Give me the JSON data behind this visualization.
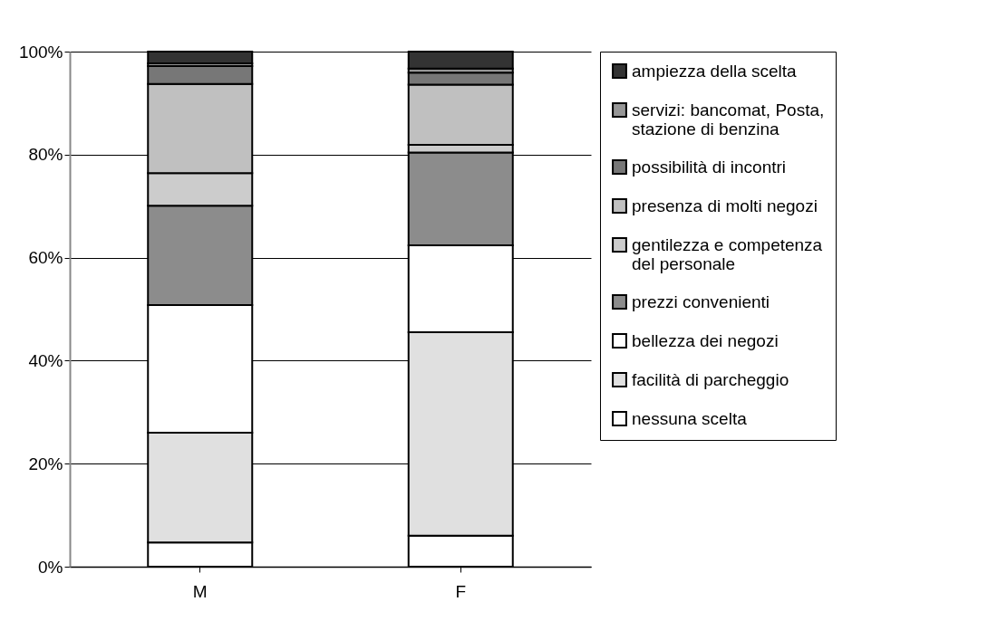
{
  "chart_data": {
    "type": "bar",
    "stacked": true,
    "categories": [
      "M",
      "F"
    ],
    "ylim": [
      0,
      100
    ],
    "yticks": [
      {
        "value": 0,
        "label": "0%"
      },
      {
        "value": 20,
        "label": "20%"
      },
      {
        "value": 40,
        "label": "40%"
      },
      {
        "value": 60,
        "label": "60%"
      },
      {
        "value": 80,
        "label": "80%"
      },
      {
        "value": 100,
        "label": "100%"
      }
    ],
    "grid": "y",
    "legend": "right",
    "series": [
      {
        "name": "nessuna scelta",
        "color": "#ffffff",
        "values": [
          4.7,
          6.0
        ]
      },
      {
        "name": "facilità di parcheggio",
        "color": "#e0e0e0",
        "values": [
          21.3,
          39.5
        ]
      },
      {
        "name": "bellezza dei negozi",
        "color": "#ffffff",
        "values": [
          24.8,
          16.9
        ]
      },
      {
        "name": "prezzi convenienti",
        "color": "#8c8c8c",
        "values": [
          19.3,
          18.0
        ]
      },
      {
        "name": "gentilezza e competenza del personale",
        "color": "#cccccc",
        "values": [
          6.3,
          1.5
        ]
      },
      {
        "name": "presenza di molti negozi",
        "color": "#c0c0c0",
        "values": [
          17.3,
          11.7
        ]
      },
      {
        "name": "possibilità di incontri",
        "color": "#777777",
        "values": [
          3.5,
          2.3
        ]
      },
      {
        "name": "servizi: bancomat, Posta, stazione di benzina",
        "color": "#969696",
        "values": [
          0.5,
          0.8
        ]
      },
      {
        "name": "ampiezza della scelta",
        "color": "#333333",
        "values": [
          2.3,
          3.3
        ]
      }
    ]
  }
}
